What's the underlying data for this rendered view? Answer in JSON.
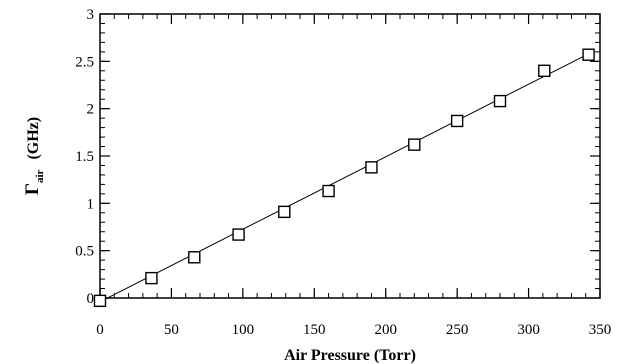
{
  "chart_data": {
    "type": "scatter",
    "title": "",
    "xlabel": "Air Pressure (Torr)",
    "ylabel": {
      "symbol": "Γ",
      "subscript": "air",
      "unit": "(GHz)"
    },
    "xlim": [
      0,
      350
    ],
    "ylim": [
      0,
      3
    ],
    "xticks": [
      "0",
      "50",
      "100",
      "150",
      "200",
      "250",
      "300",
      "350"
    ],
    "yticks": [
      "0",
      "0.5",
      "1",
      "1.5",
      "2",
      "2.5",
      "3"
    ],
    "grid": false,
    "legend": "none",
    "series": [
      {
        "marker": "open-square",
        "x": [
          0,
          36,
          66,
          97,
          129,
          160,
          190,
          220,
          250,
          280,
          311,
          342
        ],
        "y": [
          -0.03,
          0.21,
          0.43,
          0.67,
          0.91,
          1.13,
          1.38,
          1.62,
          1.87,
          2.08,
          2.4,
          2.57
        ]
      }
    ],
    "fit_line": {
      "x": [
        0,
        342
      ],
      "y": [
        -0.04,
        2.58
      ]
    }
  }
}
